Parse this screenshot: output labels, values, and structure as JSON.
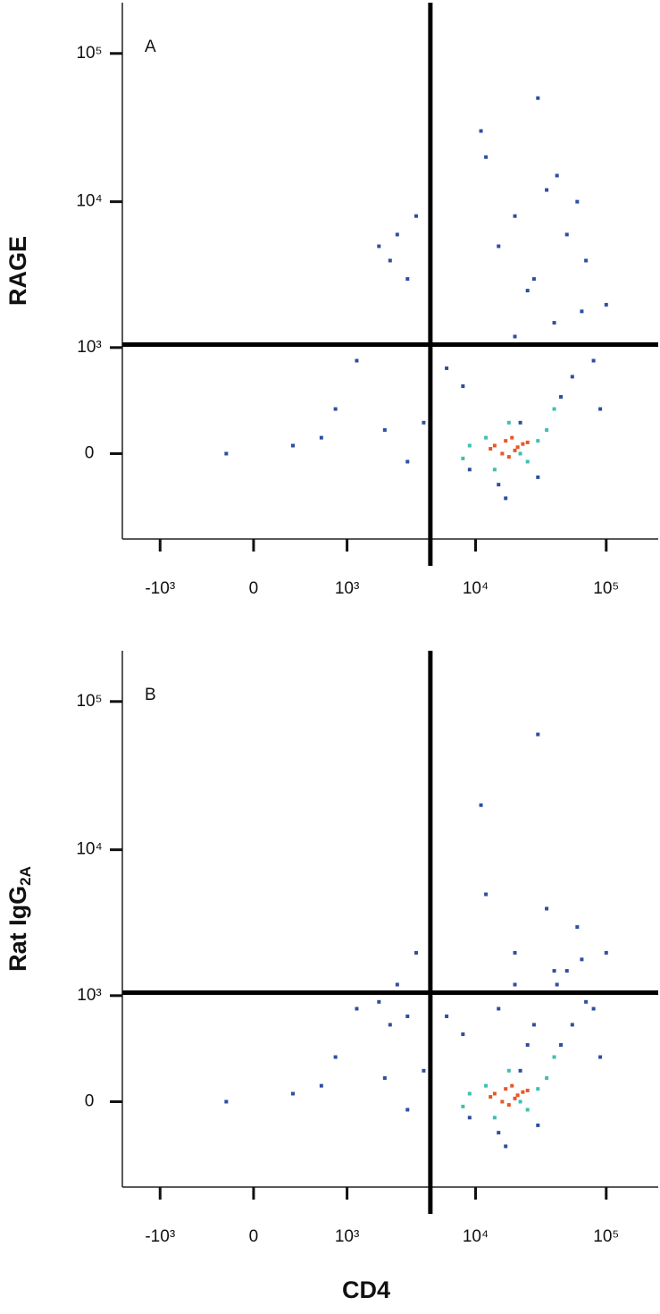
{
  "chart_data": [
    {
      "type": "scatter",
      "panel_label": "A",
      "y_label": "RAGE",
      "xlim": [
        -2000,
        250000
      ],
      "ylim": [
        -700,
        220000
      ],
      "xticks": [
        {
          "value": -1000,
          "label": "-10³"
        },
        0,
        {
          "value": 1000,
          "label": "10³"
        },
        {
          "value": 10000,
          "label": "10⁴"
        },
        {
          "value": 100000,
          "label": "10⁵"
        }
      ],
      "yticks": [
        0,
        {
          "value": 1000,
          "label": "10³"
        },
        {
          "value": 10000,
          "label": "10⁴"
        },
        {
          "value": 100000,
          "label": "10⁵"
        }
      ],
      "gates": {
        "x": 4500,
        "y": 1050
      },
      "series": [
        {
          "color": "#2f4f9e",
          "x": [
            20000,
            35000,
            50000,
            15000,
            60000,
            28000,
            42000,
            12000,
            70000,
            25000,
            2500,
            3000,
            1800,
            3500,
            2200,
            800,
            1200,
            2000,
            3000,
            4000,
            600,
            300,
            -200,
            9000,
            90000,
            40000,
            55000,
            20000,
            30000,
            15000,
            8000,
            6000,
            100000,
            80000,
            45000,
            11000,
            30000,
            65000,
            22000,
            17000
          ],
          "y": [
            8000,
            12000,
            6000,
            5000,
            10000,
            3000,
            15000,
            20000,
            4000,
            2500,
            6000,
            3000,
            5000,
            8000,
            4000,
            300,
            800,
            150,
            -50,
            200,
            100,
            50,
            0,
            -100,
            300,
            1500,
            600,
            1200,
            -150,
            -200,
            500,
            700,
            2000,
            800,
            400,
            30000,
            50000,
            1800,
            200,
            -300
          ]
        },
        {
          "color": "#3fbfb0",
          "x": [
            12000,
            18000,
            25000,
            35000,
            9000,
            40000,
            14000,
            22000,
            30000,
            8000
          ],
          "y": [
            100,
            200,
            -50,
            150,
            50,
            300,
            -100,
            0,
            80,
            -30
          ]
        },
        {
          "color": "#e8562a",
          "x": [
            14000,
            17000,
            20000,
            23000,
            16000,
            19000,
            21000,
            25000,
            13000,
            18000
          ],
          "y": [
            50,
            80,
            20,
            60,
            0,
            100,
            40,
            70,
            30,
            -20
          ]
        }
      ]
    },
    {
      "type": "scatter",
      "panel_label": "B",
      "y_label": "Rat IgG",
      "y_label_subscript": "2A",
      "x_label": "CD4",
      "xlim": [
        -2000,
        250000
      ],
      "ylim": [
        -700,
        220000
      ],
      "xticks": [
        {
          "value": -1000,
          "label": "-10³"
        },
        0,
        {
          "value": 1000,
          "label": "10³"
        },
        {
          "value": 10000,
          "label": "10⁴"
        },
        {
          "value": 100000,
          "label": "10⁵"
        }
      ],
      "yticks": [
        0,
        {
          "value": 1000,
          "label": "10³"
        },
        {
          "value": 10000,
          "label": "10⁴"
        },
        {
          "value": 100000,
          "label": "10⁵"
        }
      ],
      "gates": {
        "x": 4500,
        "y": 1050
      },
      "series": [
        {
          "color": "#2f4f9e",
          "x": [
            20000,
            35000,
            50000,
            15000,
            60000,
            28000,
            42000,
            12000,
            70000,
            25000,
            2500,
            3000,
            1800,
            3500,
            2200,
            800,
            1200,
            2000,
            3000,
            4000,
            600,
            300,
            -200,
            9000,
            90000,
            40000,
            55000,
            20000,
            30000,
            15000,
            8000,
            6000,
            100000,
            80000,
            45000,
            11000,
            30000,
            65000,
            22000,
            17000
          ],
          "y": [
            2000,
            4000,
            1500,
            800,
            3000,
            600,
            1200,
            5000,
            900,
            400,
            1200,
            700,
            900,
            2000,
            600,
            300,
            800,
            150,
            -50,
            200,
            100,
            50,
            0,
            -100,
            300,
            1500,
            600,
            1200,
            -150,
            -200,
            500,
            700,
            2000,
            800,
            400,
            20000,
            60000,
            1800,
            200,
            -300
          ]
        },
        {
          "color": "#3fbfb0",
          "x": [
            12000,
            18000,
            25000,
            35000,
            9000,
            40000,
            14000,
            22000,
            30000,
            8000
          ],
          "y": [
            100,
            200,
            -50,
            150,
            50,
            300,
            -100,
            0,
            80,
            -30
          ]
        },
        {
          "color": "#e8562a",
          "x": [
            14000,
            17000,
            20000,
            23000,
            16000,
            19000,
            21000,
            25000,
            13000,
            18000
          ],
          "y": [
            50,
            80,
            20,
            60,
            0,
            100,
            40,
            70,
            30,
            -20
          ]
        }
      ]
    }
  ]
}
